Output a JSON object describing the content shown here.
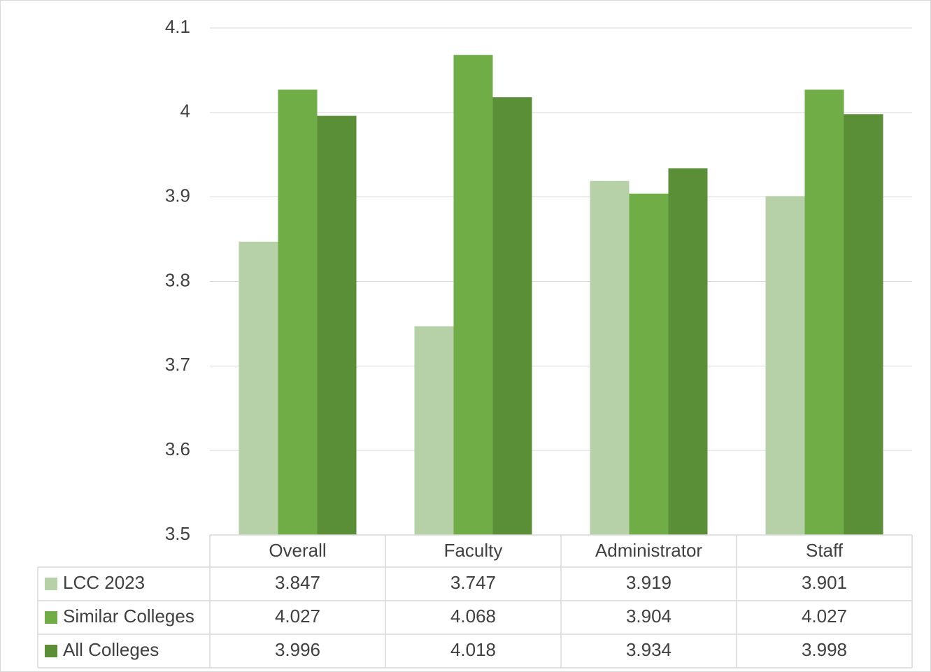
{
  "chart_data": {
    "type": "bar",
    "categories": [
      "Overall",
      "Faculty",
      "Administrator",
      "Staff"
    ],
    "series": [
      {
        "name": "LCC 2023",
        "color": "#b6d0a7",
        "values": [
          3.847,
          3.747,
          3.919,
          3.901
        ]
      },
      {
        "name": "Similar Colleges",
        "color": "#70ad47",
        "values": [
          4.027,
          4.068,
          3.904,
          4.027
        ]
      },
      {
        "name": "All Colleges",
        "color": "#5a8f37",
        "values": [
          3.996,
          4.018,
          3.934,
          3.998
        ]
      }
    ],
    "ylim": [
      3.5,
      4.1
    ],
    "yticks": [
      3.5,
      3.6,
      3.7,
      3.8,
      3.9,
      4,
      4.1
    ],
    "grid": true,
    "legend": "data-table"
  }
}
